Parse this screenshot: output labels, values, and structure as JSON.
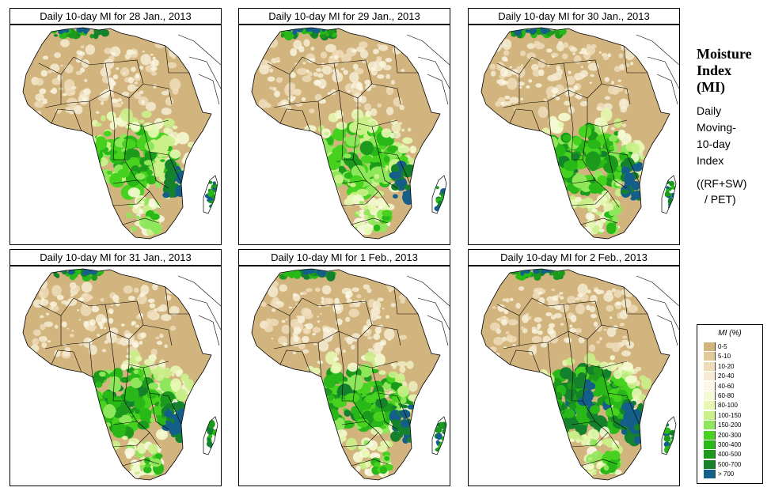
{
  "panels": [
    {
      "title": "Daily 10-day MI for  28 Jan., 2013",
      "wetness": 0
    },
    {
      "title": "Daily 10-day MI for  29 Jan., 2013",
      "wetness": 1
    },
    {
      "title": "Daily 10-day MI for  30 Jan., 2013",
      "wetness": 2
    },
    {
      "title": "Daily 10-day MI for  31 Jan., 2013",
      "wetness": 3
    },
    {
      "title": "Daily 10-day MI for  1 Feb., 2013",
      "wetness": 2
    },
    {
      "title": "Daily 10-day MI for  2 Feb., 2013",
      "wetness": 4
    }
  ],
  "legend": {
    "title_lines": [
      "Moisture",
      "Index",
      "(MI)"
    ],
    "subtitle_lines": [
      "Daily",
      "Moving-",
      "10-day",
      "Index"
    ],
    "formula_lines": [
      "((RF+SW)",
      "/ PET)"
    ],
    "key_title": "MI (%)",
    "classes": [
      {
        "label": "0-5",
        "color": "#d2b47e"
      },
      {
        "label": "5-10",
        "color": "#e2c999"
      },
      {
        "label": "10-20",
        "color": "#eedcb8"
      },
      {
        "label": "20-40",
        "color": "#f6ecd4"
      },
      {
        "label": "40-60",
        "color": "#fbf7e4"
      },
      {
        "label": "60-80",
        "color": "#f4fbd2"
      },
      {
        "label": "80-100",
        "color": "#e6f8b2"
      },
      {
        "label": "100-150",
        "color": "#caf08a"
      },
      {
        "label": "150-200",
        "color": "#8ee65a"
      },
      {
        "label": "200-300",
        "color": "#46d21e"
      },
      {
        "label": "300-400",
        "color": "#28b818"
      },
      {
        "label": "400-500",
        "color": "#1c9a1c"
      },
      {
        "label": "500-700",
        "color": "#14822c"
      },
      {
        "label": "> 700",
        "color": "#145f8a"
      }
    ],
    "background_color": "#ffffff",
    "ocean_color": "#ffffff",
    "border_color": "#000000"
  }
}
